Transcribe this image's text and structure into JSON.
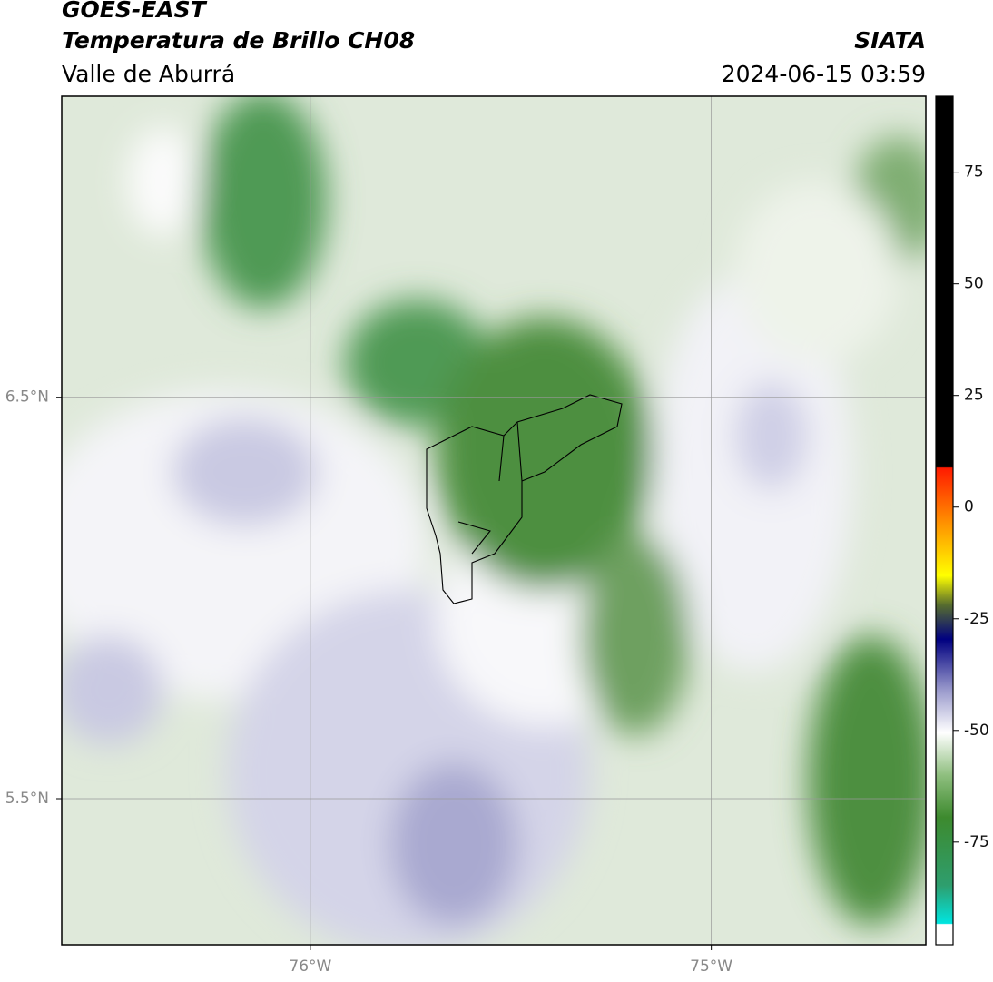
{
  "header": {
    "title": "GOES-EAST",
    "subtitle": "Temperatura de Brillo CH08",
    "region": "Valle de Aburrá",
    "source": "SIATA",
    "datetime": "2024-06-15 03:59"
  },
  "map": {
    "lat_range": [
      5.136,
      7.25
    ],
    "lon_range": [
      -76.62,
      -74.465
    ],
    "lat_ticks": [
      {
        "value": 6.5,
        "label": "6.5°N"
      },
      {
        "value": 5.5,
        "label": "5.5°N"
      }
    ],
    "lon_ticks": [
      {
        "value": -76,
        "label": "76°W"
      },
      {
        "value": -75,
        "label": "75°W"
      }
    ]
  },
  "colorbar": {
    "range": [
      -98,
      92
    ],
    "ticks": [
      75,
      50,
      25,
      0,
      -25,
      -50,
      -75
    ]
  }
}
